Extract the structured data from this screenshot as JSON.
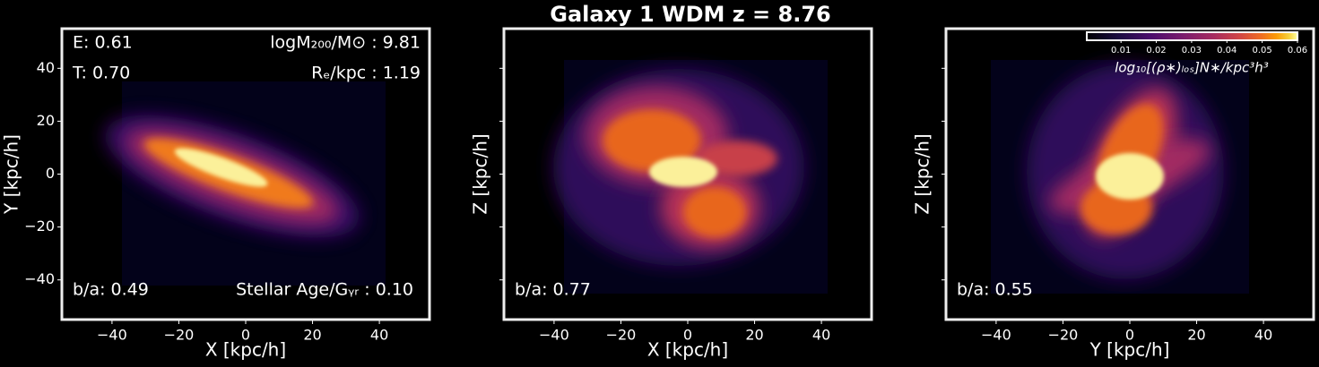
{
  "title": "Galaxy 1 WDM  z = 8.76",
  "colorbar": {
    "label": "log₁₀[(ρ∗)ₗₒₛ]N∗/kpc³h³",
    "lim": [
      0.0003,
      0.06
    ],
    "ticks": [
      0.01,
      0.02,
      0.03,
      0.04,
      0.05,
      0.06
    ]
  },
  "chart_data": [
    {
      "type": "density",
      "xlabel": "X [kpc/h]",
      "ylabel": "Y [kpc/h]",
      "xlim": [
        -55,
        55
      ],
      "ylim": [
        -55,
        55
      ],
      "xticks": [
        {
          "value": -40,
          "label": "−40"
        },
        {
          "value": -20,
          "label": "−20"
        },
        0,
        20,
        40
      ],
      "yticks": [
        {
          "value": -40,
          "label": "−40"
        },
        {
          "value": -20,
          "label": "−20"
        },
        0,
        20,
        40
      ],
      "ytick_labels": true,
      "annotations": [
        "E: 0.61",
        "T: 0.70",
        "logM₂₀₀/M⊙ : 9.81",
        "Rₑ/kpc : 1.19",
        "b/a: 0.49",
        "Stellar Age/Gᵧᵣ : 0.10"
      ]
    },
    {
      "type": "density",
      "xlabel": "X [kpc/h]",
      "ylabel": "Z [kpc/h]",
      "xlim": [
        -55,
        55
      ],
      "ylim": [
        -55,
        55
      ],
      "xticks": [
        {
          "value": -40,
          "label": "−40"
        },
        {
          "value": -20,
          "label": "−20"
        },
        0,
        20,
        40
      ],
      "yticks": [
        -40,
        -20,
        0,
        20,
        40
      ],
      "ytick_labels": false,
      "annotations": [
        "b/a: 0.77"
      ]
    },
    {
      "type": "density",
      "xlabel": "Y [kpc/h]",
      "ylabel": "Z [kpc/h]",
      "xlim": [
        -55,
        55
      ],
      "ylim": [
        -55,
        55
      ],
      "xticks": [
        {
          "value": -40,
          "label": "−40"
        },
        {
          "value": -20,
          "label": "−20"
        },
        0,
        20,
        40
      ],
      "yticks": [
        -40,
        -20,
        0,
        20,
        40
      ],
      "ytick_labels": false,
      "annotations": [
        "b/a: 0.55"
      ]
    }
  ]
}
